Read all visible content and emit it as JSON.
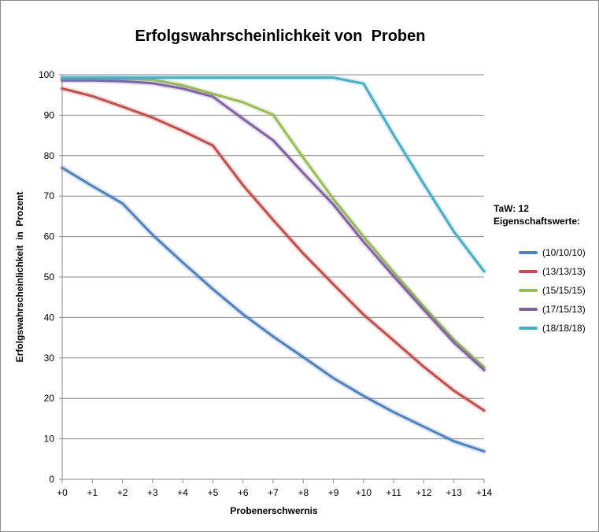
{
  "chart_data": {
    "type": "line",
    "title": "Erfolgswahrscheinlichkeit von  Proben",
    "xlabel": "Probenerschwernis",
    "ylabel": "Erfolgswahrscheinlichkeit  in  Prozent",
    "categories": [
      "+0",
      "+1",
      "+2",
      "+3",
      "+4",
      "+5",
      "+6",
      "+7",
      "+8",
      "+9",
      "+10",
      "+11",
      "+12",
      "+13",
      "+14"
    ],
    "ylim": [
      0,
      100
    ],
    "yticks": [
      0,
      10,
      20,
      30,
      40,
      50,
      60,
      70,
      80,
      90,
      100
    ],
    "grid": "horizontal",
    "legend_title_lines": [
      "TaW: 12",
      "Eigenschaftswerte:"
    ],
    "legend_position": "right",
    "series": [
      {
        "name": "(10/10/10)",
        "color": "#4F81BD",
        "values": [
          77,
          72.5,
          68.2,
          60.4,
          53.6,
          47,
          40.8,
          35.3,
          30.2,
          25,
          20.6,
          16.6,
          13,
          9.4,
          6.9
        ]
      },
      {
        "name": "(13/13/13)",
        "color": "#C0504D",
        "values": [
          96.6,
          94.7,
          92.1,
          89.4,
          86.1,
          82.5,
          72.7,
          64.1,
          55.8,
          48.2,
          40.7,
          34.3,
          27.8,
          21.9,
          17
        ]
      },
      {
        "name": "(15/15/15)",
        "color": "#9BBB59",
        "values": [
          99,
          99,
          99,
          98.8,
          97.4,
          95.3,
          93.2,
          90.1,
          79.5,
          69.3,
          60,
          51.2,
          42.7,
          34.5,
          27.7
        ]
      },
      {
        "name": "(17/15/13)",
        "color": "#8064A2",
        "values": [
          98.6,
          98.6,
          98.4,
          97.9,
          96.6,
          94.6,
          89.1,
          83.8,
          75.7,
          67.9,
          58.7,
          50.2,
          41.9,
          33.8,
          27
        ]
      },
      {
        "name": "(18/18/18)",
        "color": "#4BACC6",
        "values": [
          99.3,
          99.3,
          99.3,
          99.3,
          99.3,
          99.3,
          99.3,
          99.3,
          99.3,
          99.3,
          97.8,
          85.1,
          73,
          61.2,
          51.4
        ]
      }
    ]
  }
}
